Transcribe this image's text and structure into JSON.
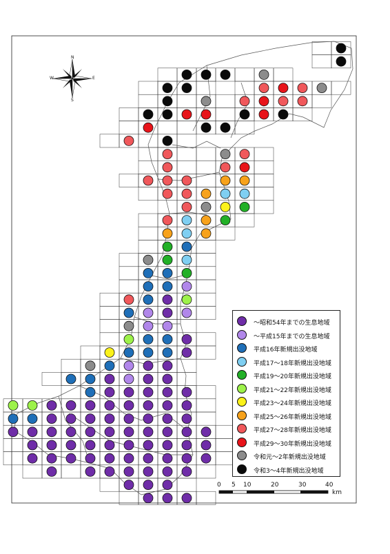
{
  "compass": {
    "n": "N",
    "s": "S",
    "e": "E",
    "w": "W"
  },
  "legend": [
    {
      "key": "c0",
      "label": "〜昭和54年までの生息地域",
      "color": "#6f2da8"
    },
    {
      "key": "c1",
      "label": "〜平成15年までの生息地域",
      "color": "#b187ea"
    },
    {
      "key": "c2",
      "label": "平成16年新規出没地域",
      "color": "#1f6fb8"
    },
    {
      "key": "c3",
      "label": "平成17〜18年新規出没地域",
      "color": "#7fcff2"
    },
    {
      "key": "c4",
      "label": "平成19〜20年新規出没地域",
      "color": "#22b027"
    },
    {
      "key": "c5",
      "label": "平成21〜22年新規出没地域",
      "color": "#9df24a"
    },
    {
      "key": "c6",
      "label": "平成23〜24年新規出没地域",
      "color": "#fbf21a"
    },
    {
      "key": "c7",
      "label": "平成25〜26年新規出没地域",
      "color": "#f7a21b"
    },
    {
      "key": "c8",
      "label": "平成27〜28年新規出没地域",
      "color": "#f0585b"
    },
    {
      "key": "c9",
      "label": "平成29〜30年新規出没地域",
      "color": "#e8141a"
    },
    {
      "key": "c10",
      "label": "令和元〜2年新規出没地域",
      "color": "#8c8c8c"
    },
    {
      "key": "c11",
      "label": "令和3〜4年新規出没地域",
      "color": "#0a0a0a"
    }
  ],
  "scale": {
    "ticks": [
      "0",
      "5",
      "10",
      "20",
      "30",
      "40"
    ],
    "unit": "km"
  },
  "grid_dots": [
    {
      "col": 17,
      "row": 0,
      "c": "c11"
    },
    {
      "col": 17,
      "row": 1,
      "c": "c11"
    },
    {
      "col": 9,
      "row": 2,
      "c": "c11"
    },
    {
      "col": 10,
      "row": 2,
      "c": "c11"
    },
    {
      "col": 11,
      "row": 2,
      "c": "c11"
    },
    {
      "col": 13,
      "row": 2,
      "c": "c10"
    },
    {
      "col": 8,
      "row": 3,
      "c": "c11"
    },
    {
      "col": 9,
      "row": 3,
      "c": "c11"
    },
    {
      "col": 13,
      "row": 3,
      "c": "c8"
    },
    {
      "col": 14,
      "row": 3,
      "c": "c9"
    },
    {
      "col": 15,
      "row": 3,
      "c": "c8"
    },
    {
      "col": 16,
      "row": 3,
      "c": "c10"
    },
    {
      "col": 8,
      "row": 4,
      "c": "c11"
    },
    {
      "col": 10,
      "row": 4,
      "c": "c10"
    },
    {
      "col": 12,
      "row": 4,
      "c": "c8"
    },
    {
      "col": 13,
      "row": 4,
      "c": "c9"
    },
    {
      "col": 14,
      "row": 4,
      "c": "c8"
    },
    {
      "col": 15,
      "row": 4,
      "c": "c8"
    },
    {
      "col": 7,
      "row": 5,
      "c": "c11"
    },
    {
      "col": 8,
      "row": 5,
      "c": "c11"
    },
    {
      "col": 9,
      "row": 5,
      "c": "c9"
    },
    {
      "col": 10,
      "row": 5,
      "c": "c9"
    },
    {
      "col": 12,
      "row": 5,
      "c": "c11"
    },
    {
      "col": 13,
      "row": 5,
      "c": "c9"
    },
    {
      "col": 14,
      "row": 5,
      "c": "c11"
    },
    {
      "col": 7,
      "row": 6,
      "c": "c9"
    },
    {
      "col": 10,
      "row": 6,
      "c": "c11"
    },
    {
      "col": 11,
      "row": 6,
      "c": "c11"
    },
    {
      "col": 6,
      "row": 7,
      "c": "c8"
    },
    {
      "col": 8,
      "row": 7,
      "c": "c11"
    },
    {
      "col": 8,
      "row": 8,
      "c": "c8"
    },
    {
      "col": 11,
      "row": 8,
      "c": "c10"
    },
    {
      "col": 12,
      "row": 8,
      "c": "c8"
    },
    {
      "col": 8,
      "row": 9,
      "c": "c8"
    },
    {
      "col": 11,
      "row": 9,
      "c": "c8"
    },
    {
      "col": 12,
      "row": 9,
      "c": "c9"
    },
    {
      "col": 7,
      "row": 10,
      "c": "c8"
    },
    {
      "col": 8,
      "row": 10,
      "c": "c8"
    },
    {
      "col": 9,
      "row": 10,
      "c": "c8"
    },
    {
      "col": 11,
      "row": 10,
      "c": "c7"
    },
    {
      "col": 12,
      "row": 10,
      "c": "c7"
    },
    {
      "col": 8,
      "row": 11,
      "c": "c8"
    },
    {
      "col": 9,
      "row": 11,
      "c": "c8"
    },
    {
      "col": 10,
      "row": 11,
      "c": "c7"
    },
    {
      "col": 11,
      "row": 11,
      "c": "c3"
    },
    {
      "col": 12,
      "row": 11,
      "c": "c3"
    },
    {
      "col": 9,
      "row": 12,
      "c": "c8"
    },
    {
      "col": 10,
      "row": 12,
      "c": "c10"
    },
    {
      "col": 11,
      "row": 12,
      "c": "c6"
    },
    {
      "col": 12,
      "row": 12,
      "c": "c4"
    },
    {
      "col": 8,
      "row": 13,
      "c": "c8"
    },
    {
      "col": 9,
      "row": 13,
      "c": "c3"
    },
    {
      "col": 10,
      "row": 13,
      "c": "c7"
    },
    {
      "col": 11,
      "row": 13,
      "c": "c4"
    },
    {
      "col": 8,
      "row": 14,
      "c": "c7"
    },
    {
      "col": 9,
      "row": 14,
      "c": "c3"
    },
    {
      "col": 10,
      "row": 14,
      "c": "c7"
    },
    {
      "col": 8,
      "row": 15,
      "c": "c4"
    },
    {
      "col": 9,
      "row": 15,
      "c": "c2"
    },
    {
      "col": 7,
      "row": 16,
      "c": "c10"
    },
    {
      "col": 8,
      "row": 16,
      "c": "c4"
    },
    {
      "col": 9,
      "row": 16,
      "c": "c3"
    },
    {
      "col": 7,
      "row": 17,
      "c": "c2"
    },
    {
      "col": 8,
      "row": 17,
      "c": "c2"
    },
    {
      "col": 9,
      "row": 17,
      "c": "c4"
    },
    {
      "col": 7,
      "row": 18,
      "c": "c2"
    },
    {
      "col": 8,
      "row": 18,
      "c": "c2"
    },
    {
      "col": 9,
      "row": 18,
      "c": "c1"
    },
    {
      "col": 6,
      "row": 19,
      "c": "c8"
    },
    {
      "col": 7,
      "row": 19,
      "c": "c2"
    },
    {
      "col": 8,
      "row": 19,
      "c": "c0"
    },
    {
      "col": 9,
      "row": 19,
      "c": "c5"
    },
    {
      "col": 6,
      "row": 20,
      "c": "c2"
    },
    {
      "col": 7,
      "row": 20,
      "c": "c1"
    },
    {
      "col": 8,
      "row": 20,
      "c": "c0"
    },
    {
      "col": 9,
      "row": 20,
      "c": "c1"
    },
    {
      "col": 6,
      "row": 21,
      "c": "c10"
    },
    {
      "col": 7,
      "row": 21,
      "c": "c1"
    },
    {
      "col": 8,
      "row": 21,
      "c": "c1"
    },
    {
      "col": 6,
      "row": 22,
      "c": "c5"
    },
    {
      "col": 7,
      "row": 22,
      "c": "c2"
    },
    {
      "col": 8,
      "row": 22,
      "c": "c2"
    },
    {
      "col": 9,
      "row": 22,
      "c": "c0"
    },
    {
      "col": 5,
      "row": 23,
      "c": "c6"
    },
    {
      "col": 6,
      "row": 23,
      "c": "c2"
    },
    {
      "col": 7,
      "row": 23,
      "c": "c2"
    },
    {
      "col": 8,
      "row": 23,
      "c": "c2"
    },
    {
      "col": 9,
      "row": 23,
      "c": "c0"
    },
    {
      "col": 4,
      "row": 24,
      "c": "c10"
    },
    {
      "col": 5,
      "row": 24,
      "c": "c2"
    },
    {
      "col": 6,
      "row": 24,
      "c": "c1"
    },
    {
      "col": 7,
      "row": 24,
      "c": "c0"
    },
    {
      "col": 8,
      "row": 24,
      "c": "c0"
    },
    {
      "col": 3,
      "row": 25,
      "c": "c2"
    },
    {
      "col": 4,
      "row": 25,
      "c": "c2"
    },
    {
      "col": 5,
      "row": 25,
      "c": "c0"
    },
    {
      "col": 6,
      "row": 25,
      "c": "c1"
    },
    {
      "col": 7,
      "row": 25,
      "c": "c0"
    },
    {
      "col": 8,
      "row": 25,
      "c": "c0"
    },
    {
      "col": 4,
      "row": 26,
      "c": "c2"
    },
    {
      "col": 5,
      "row": 26,
      "c": "c0"
    },
    {
      "col": 6,
      "row": 26,
      "c": "c0"
    },
    {
      "col": 7,
      "row": 26,
      "c": "c0"
    },
    {
      "col": 8,
      "row": 26,
      "c": "c0"
    },
    {
      "col": 9,
      "row": 26,
      "c": "c0"
    },
    {
      "col": 0,
      "row": 27,
      "c": "c5"
    },
    {
      "col": 1,
      "row": 27,
      "c": "c5"
    },
    {
      "col": 2,
      "row": 27,
      "c": "c0"
    },
    {
      "col": 3,
      "row": 27,
      "c": "c0"
    },
    {
      "col": 4,
      "row": 27,
      "c": "c0"
    },
    {
      "col": 5,
      "row": 27,
      "c": "c0"
    },
    {
      "col": 6,
      "row": 27,
      "c": "c0"
    },
    {
      "col": 7,
      "row": 27,
      "c": "c0"
    },
    {
      "col": 8,
      "row": 27,
      "c": "c0"
    },
    {
      "col": 9,
      "row": 27,
      "c": "c0"
    },
    {
      "col": 0,
      "row": 28,
      "c": "c2"
    },
    {
      "col": 1,
      "row": 28,
      "c": "c2"
    },
    {
      "col": 2,
      "row": 28,
      "c": "c0"
    },
    {
      "col": 3,
      "row": 28,
      "c": "c0"
    },
    {
      "col": 4,
      "row": 28,
      "c": "c0"
    },
    {
      "col": 5,
      "row": 28,
      "c": "c0"
    },
    {
      "col": 6,
      "row": 28,
      "c": "c0"
    },
    {
      "col": 7,
      "row": 28,
      "c": "c0"
    },
    {
      "col": 8,
      "row": 28,
      "c": "c0"
    },
    {
      "col": 9,
      "row": 28,
      "c": "c0"
    },
    {
      "col": 0,
      "row": 29,
      "c": "c0"
    },
    {
      "col": 1,
      "row": 29,
      "c": "c0"
    },
    {
      "col": 2,
      "row": 29,
      "c": "c0"
    },
    {
      "col": 3,
      "row": 29,
      "c": "c0"
    },
    {
      "col": 4,
      "row": 29,
      "c": "c0"
    },
    {
      "col": 5,
      "row": 29,
      "c": "c0"
    },
    {
      "col": 6,
      "row": 29,
      "c": "c0"
    },
    {
      "col": 7,
      "row": 29,
      "c": "c0"
    },
    {
      "col": 8,
      "row": 29,
      "c": "c0"
    },
    {
      "col": 9,
      "row": 29,
      "c": "c0"
    },
    {
      "col": 10,
      "row": 29,
      "c": "c0"
    },
    {
      "col": 1,
      "row": 30,
      "c": "c0"
    },
    {
      "col": 2,
      "row": 30,
      "c": "c0"
    },
    {
      "col": 3,
      "row": 30,
      "c": "c0"
    },
    {
      "col": 4,
      "row": 30,
      "c": "c0"
    },
    {
      "col": 5,
      "row": 30,
      "c": "c0"
    },
    {
      "col": 6,
      "row": 30,
      "c": "c0"
    },
    {
      "col": 7,
      "row": 30,
      "c": "c0"
    },
    {
      "col": 8,
      "row": 30,
      "c": "c0"
    },
    {
      "col": 9,
      "row": 30,
      "c": "c0"
    },
    {
      "col": 10,
      "row": 30,
      "c": "c0"
    },
    {
      "col": 1,
      "row": 31,
      "c": "c0"
    },
    {
      "col": 2,
      "row": 31,
      "c": "c0"
    },
    {
      "col": 3,
      "row": 31,
      "c": "c0"
    },
    {
      "col": 4,
      "row": 31,
      "c": "c0"
    },
    {
      "col": 5,
      "row": 31,
      "c": "c0"
    },
    {
      "col": 6,
      "row": 31,
      "c": "c0"
    },
    {
      "col": 7,
      "row": 31,
      "c": "c0"
    },
    {
      "col": 8,
      "row": 31,
      "c": "c0"
    },
    {
      "col": 9,
      "row": 31,
      "c": "c0"
    },
    {
      "col": 10,
      "row": 31,
      "c": "c0"
    },
    {
      "col": 2,
      "row": 32,
      "c": "c0"
    },
    {
      "col": 4,
      "row": 32,
      "c": "c0"
    },
    {
      "col": 5,
      "row": 32,
      "c": "c0"
    },
    {
      "col": 6,
      "row": 32,
      "c": "c0"
    },
    {
      "col": 7,
      "row": 32,
      "c": "c0"
    },
    {
      "col": 8,
      "row": 32,
      "c": "c0"
    },
    {
      "col": 9,
      "row": 32,
      "c": "c0"
    },
    {
      "col": 6,
      "row": 33,
      "c": "c0"
    },
    {
      "col": 7,
      "row": 33,
      "c": "c0"
    },
    {
      "col": 8,
      "row": 33,
      "c": "c0"
    },
    {
      "col": 7,
      "row": 34,
      "c": "c0"
    },
    {
      "col": 8,
      "row": 34,
      "c": "c0"
    },
    {
      "col": 9,
      "row": 34,
      "c": "c0"
    }
  ]
}
